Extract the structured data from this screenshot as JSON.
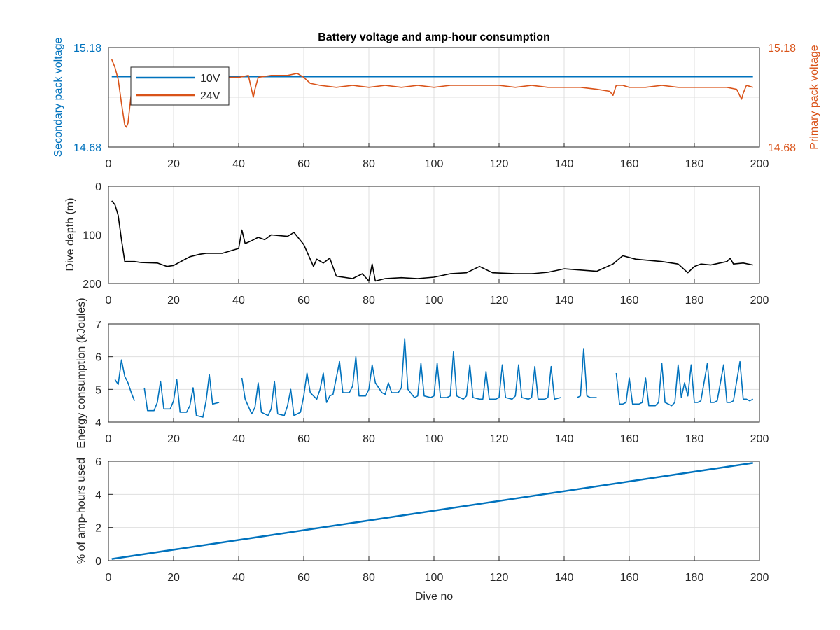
{
  "chart_data": [
    {
      "type": "line",
      "title": "Battery voltage and amp-hour consumption",
      "ylabel_left": "Secondary pack voltage",
      "ylabel_right": "Primary pack voltage",
      "xlim": [
        0,
        200
      ],
      "ylim": [
        14.68,
        15.18
      ],
      "xticks": [
        0,
        20,
        40,
        60,
        80,
        100,
        120,
        140,
        160,
        180,
        200
      ],
      "yticks_left": [
        "14.68",
        "15.18"
      ],
      "yticks_right": [
        "14.68",
        "15.18"
      ],
      "grid": true,
      "legend_position": "top-left",
      "series": [
        {
          "name": "10V",
          "axis": "left",
          "color": "#0072bd",
          "x": [
            1,
            198
          ],
          "y": [
            15.035,
            15.035
          ]
        },
        {
          "name": "24V",
          "axis": "right",
          "color": "#d95319",
          "x": [
            1,
            2,
            3,
            4,
            5,
            5.5,
            6,
            7,
            8,
            10,
            14,
            20,
            25,
            30,
            35,
            40,
            43,
            44.5,
            45,
            46,
            50,
            55,
            58,
            60,
            62,
            65,
            70,
            75,
            80,
            85,
            90,
            95,
            100,
            105,
            110,
            115,
            120,
            125,
            130,
            135,
            140,
            145,
            150,
            154,
            155,
            156,
            158,
            160,
            165,
            170,
            175,
            180,
            185,
            190,
            193,
            194.5,
            195,
            196,
            198
          ],
          "y": [
            15.12,
            15.08,
            15.02,
            14.9,
            14.79,
            14.78,
            14.8,
            14.95,
            15.02,
            15.03,
            15.02,
            15.03,
            15.04,
            15.02,
            15.03,
            15.03,
            15.04,
            14.93,
            14.97,
            15.03,
            15.04,
            15.04,
            15.05,
            15.03,
            15.0,
            14.99,
            14.98,
            14.99,
            14.98,
            14.99,
            14.98,
            14.99,
            14.98,
            14.99,
            14.99,
            14.99,
            14.99,
            14.98,
            14.99,
            14.98,
            14.98,
            14.98,
            14.97,
            14.96,
            14.94,
            14.99,
            14.99,
            14.98,
            14.98,
            14.99,
            14.98,
            14.98,
            14.98,
            14.98,
            14.97,
            14.92,
            14.95,
            14.99,
            14.98
          ]
        }
      ]
    },
    {
      "type": "line",
      "ylabel": "Dive depth (m)",
      "xlim": [
        0,
        200
      ],
      "ylim": [
        0,
        200
      ],
      "y_reversed": true,
      "xticks": [
        0,
        20,
        40,
        60,
        80,
        100,
        120,
        140,
        160,
        180,
        200
      ],
      "yticks": [
        0,
        100,
        200
      ],
      "grid": true,
      "series": [
        {
          "color": "#000000",
          "x": [
            1,
            2,
            3,
            4,
            5,
            8,
            10,
            15,
            18,
            20,
            25,
            28,
            30,
            35,
            40,
            41,
            42,
            44,
            46,
            48,
            50,
            55,
            57,
            60,
            63,
            64,
            66,
            68,
            70,
            75,
            78,
            80,
            81,
            82,
            85,
            90,
            95,
            100,
            105,
            110,
            114,
            118,
            125,
            130,
            135,
            140,
            150,
            155,
            158,
            162,
            170,
            175,
            178,
            180,
            182,
            185,
            190,
            191,
            192,
            195,
            198
          ],
          "y": [
            30,
            38,
            60,
            110,
            155,
            155,
            157,
            158,
            165,
            163,
            145,
            140,
            138,
            138,
            128,
            90,
            118,
            112,
            105,
            110,
            100,
            103,
            95,
            120,
            165,
            150,
            158,
            148,
            185,
            190,
            180,
            195,
            160,
            195,
            190,
            188,
            190,
            187,
            180,
            178,
            165,
            178,
            180,
            180,
            177,
            170,
            175,
            160,
            143,
            150,
            155,
            160,
            178,
            165,
            160,
            162,
            155,
            148,
            160,
            158,
            162
          ]
        }
      ]
    },
    {
      "type": "line",
      "ylabel": "Energy consumption (kJoules)",
      "xlim": [
        0,
        200
      ],
      "ylim": [
        4,
        7
      ],
      "xticks": [
        0,
        20,
        40,
        60,
        80,
        100,
        120,
        140,
        160,
        180,
        200
      ],
      "yticks": [
        4,
        5,
        6,
        7
      ],
      "grid": true,
      "series": [
        {
          "color": "#0072bd",
          "segments": [
            {
              "x": [
                2,
                3,
                4,
                5,
                6,
                7,
                8
              ],
              "y": [
                5.3,
                5.15,
                5.9,
                5.4,
                5.2,
                4.9,
                4.65
              ]
            },
            {
              "x": [
                11,
                12,
                14,
                15,
                16,
                17,
                19,
                20,
                21,
                22,
                24,
                25,
                26,
                27,
                29,
                30,
                31,
                32,
                34
              ],
              "y": [
                5.05,
                4.35,
                4.35,
                4.6,
                5.25,
                4.4,
                4.4,
                4.65,
                5.3,
                4.3,
                4.3,
                4.5,
                5.05,
                4.2,
                4.15,
                4.65,
                5.45,
                4.55,
                4.6
              ]
            },
            {
              "x": [
                41,
                42,
                44,
                45,
                46,
                47,
                49,
                50,
                51,
                52,
                54,
                55,
                56,
                57,
                59,
                60,
                61,
                62,
                64,
                65,
                66,
                67,
                68,
                69,
                71,
                72,
                74,
                75,
                76,
                77,
                79,
                80,
                81,
                82,
                84,
                85,
                86,
                87,
                89,
                90,
                91,
                92,
                94,
                95,
                96,
                97,
                99,
                100,
                101,
                102,
                104,
                105,
                106,
                107,
                109,
                110,
                111,
                112,
                114,
                115,
                116,
                117,
                119,
                120,
                121,
                122,
                124,
                125,
                126,
                127,
                129,
                130,
                131,
                132,
                134,
                135,
                136,
                137,
                139
              ],
              "y": [
                5.35,
                4.7,
                4.25,
                4.45,
                5.2,
                4.3,
                4.2,
                4.4,
                5.25,
                4.25,
                4.2,
                4.5,
                5.0,
                4.2,
                4.3,
                4.8,
                5.5,
                4.9,
                4.7,
                5.0,
                5.5,
                4.6,
                4.8,
                4.85,
                5.85,
                4.9,
                4.9,
                5.1,
                6.0,
                4.8,
                4.8,
                5.0,
                5.75,
                5.2,
                4.9,
                4.85,
                5.2,
                4.9,
                4.9,
                5.05,
                6.55,
                5.0,
                4.75,
                4.8,
                5.8,
                4.8,
                4.75,
                4.8,
                5.8,
                4.75,
                4.75,
                4.8,
                6.15,
                4.8,
                4.7,
                4.8,
                5.75,
                4.75,
                4.7,
                4.7,
                5.55,
                4.7,
                4.7,
                4.75,
                5.75,
                4.75,
                4.7,
                4.8,
                5.75,
                4.75,
                4.7,
                4.75,
                5.7,
                4.7,
                4.7,
                4.75,
                5.7,
                4.7,
                4.75
              ]
            },
            {
              "x": [
                144,
                145,
                146,
                147,
                148,
                150
              ],
              "y": [
                4.75,
                4.8,
                6.25,
                4.8,
                4.75,
                4.75
              ]
            },
            {
              "x": [
                156,
                157,
                158,
                159,
                160,
                161,
                163,
                164,
                165,
                166,
                168,
                169,
                170,
                171,
                173,
                174,
                175,
                176,
                177,
                178,
                179,
                180,
                181,
                182,
                184,
                185,
                186,
                187,
                189,
                190,
                191,
                192,
                194,
                195,
                196,
                197,
                198
              ],
              "y": [
                5.5,
                4.55,
                4.55,
                4.6,
                5.35,
                4.55,
                4.55,
                4.6,
                5.35,
                4.5,
                4.5,
                4.6,
                5.8,
                4.6,
                4.5,
                4.6,
                5.75,
                4.75,
                5.2,
                4.8,
                5.75,
                4.6,
                4.6,
                4.65,
                5.8,
                4.6,
                4.6,
                4.65,
                5.75,
                4.6,
                4.6,
                4.65,
                5.85,
                4.7,
                4.7,
                4.65,
                4.7
              ]
            }
          ]
        }
      ]
    },
    {
      "type": "line",
      "ylabel": "% of amp-hours used",
      "xlabel": "Dive no",
      "xlim": [
        0,
        200
      ],
      "ylim": [
        0,
        6
      ],
      "xticks": [
        0,
        20,
        40,
        60,
        80,
        100,
        120,
        140,
        160,
        180,
        200
      ],
      "yticks": [
        0,
        2,
        4,
        6
      ],
      "grid": true,
      "series": [
        {
          "color": "#0072bd",
          "x": [
            1,
            198
          ],
          "y": [
            0.1,
            5.9
          ]
        }
      ]
    }
  ]
}
